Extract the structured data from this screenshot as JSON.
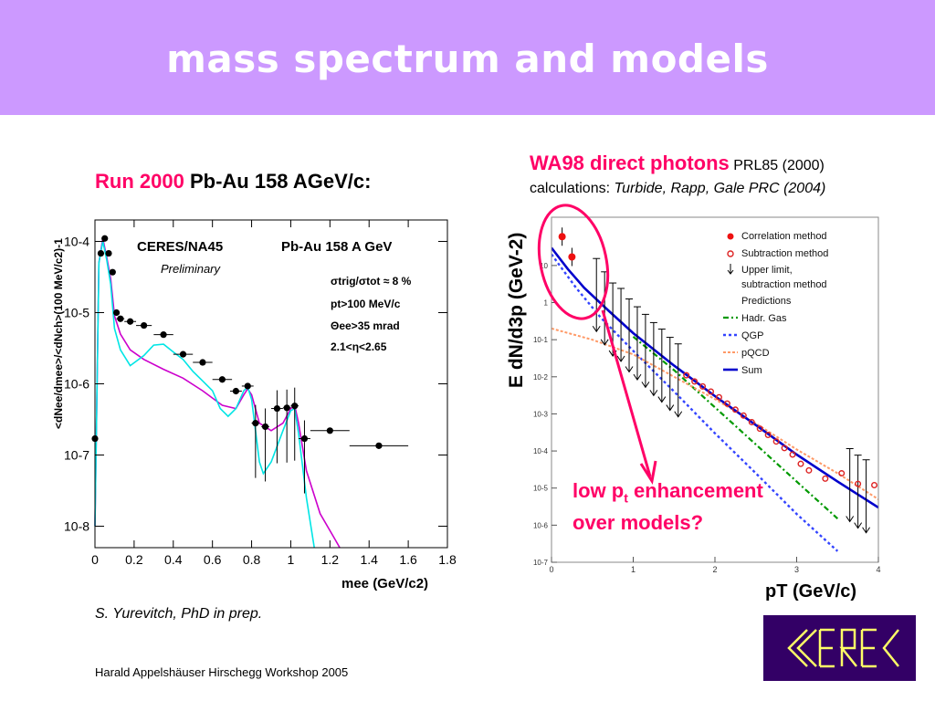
{
  "slide": {
    "title": "mass spectrum and models",
    "left_header": {
      "run": "Run 2000",
      "system": "Pb-Au 158 AGeV/c:"
    },
    "right_header": {
      "title": "WA98 direct photons",
      "ref": "PRL85 (2000)",
      "calc_prefix": "calculations:",
      "calc_ref": "Turbide, Rapp, Gale PRC (2004)"
    },
    "credit": "S. Yurevitch, PhD in prep.",
    "footer": "Harald Appelshäuser  Hirschegg Workshop 2005",
    "callout": {
      "line1_pre": "low p",
      "line1_sub": "t",
      "line1_post": " enhancement",
      "line2": "over models?"
    },
    "logo_text": "CERES",
    "logo_color": "#330066",
    "accent_color": "#ff0066"
  },
  "chart_data": [
    {
      "type": "scatter",
      "labels": {
        "experiment": "CERES/NA45",
        "system": "Pb-Au 158 A GeV",
        "status": "Preliminary",
        "cut1": "σtrig/σtot ≈ 8 %",
        "cut2": "pt>100 MeV/c",
        "cut3": "Θee>35 mrad",
        "cut4": "2.1<η<2.65"
      },
      "xlabel": "mee (GeV/c2)",
      "ylabel": "<dNee/dmee>/<dNch>(100 MeV/c2)-1",
      "x_ticks": [
        "0",
        "0.2",
        "0.4",
        "0.6",
        "0.8",
        "1",
        "1.2",
        "1.4",
        "1.6",
        "1.8"
      ],
      "y_ticks": [
        "10-4",
        "10-5",
        "10-6",
        "10-7",
        "10-8"
      ],
      "xlim": [
        0,
        1.8
      ],
      "ylim": [
        5e-09,
        0.0002
      ],
      "yscale": "log",
      "points": [
        {
          "x": 0.0,
          "y": 1.7e-07,
          "xerr": 0.0
        },
        {
          "x": 0.03,
          "y": 6.8e-05,
          "xerr": 0.01
        },
        {
          "x": 0.05,
          "y": 0.00011,
          "xerr": 0.01
        },
        {
          "x": 0.07,
          "y": 6.8e-05,
          "xerr": 0.01
        },
        {
          "x": 0.09,
          "y": 3.7e-05,
          "xerr": 0.01
        },
        {
          "x": 0.11,
          "y": 1e-05,
          "xerr": 0.01
        },
        {
          "x": 0.13,
          "y": 8.2e-06,
          "xerr": 0.02
        },
        {
          "x": 0.18,
          "y": 7.5e-06,
          "xerr": 0.03
        },
        {
          "x": 0.25,
          "y": 6.6e-06,
          "xerr": 0.04
        },
        {
          "x": 0.35,
          "y": 4.9e-06,
          "xerr": 0.05
        },
        {
          "x": 0.45,
          "y": 2.6e-06,
          "xerr": 0.05
        },
        {
          "x": 0.55,
          "y": 2e-06,
          "xerr": 0.05
        },
        {
          "x": 0.65,
          "y": 1.15e-06,
          "xerr": 0.05
        },
        {
          "x": 0.72,
          "y": 7.9e-07,
          "xerr": 0.03
        },
        {
          "x": 0.78,
          "y": 9.3e-07,
          "xerr": 0.03
        },
        {
          "x": 0.82,
          "y": 2.8e-07,
          "xerr": 0.02
        },
        {
          "x": 0.87,
          "y": 2.5e-07,
          "xerr": 0.02
        },
        {
          "x": 0.93,
          "y": 4.5e-07,
          "xerr": 0.03
        },
        {
          "x": 0.98,
          "y": 4.6e-07,
          "xerr": 0.02
        },
        {
          "x": 1.02,
          "y": 4.9e-07,
          "xerr": 0.02
        },
        {
          "x": 1.07,
          "y": 1.7e-07,
          "xerr": 0.03
        },
        {
          "x": 1.2,
          "y": 2.2e-07,
          "xerr": 0.1
        },
        {
          "x": 1.45,
          "y": 1.35e-07,
          "xerr": 0.15
        }
      ],
      "series": [
        {
          "color": "#cc00cc",
          "x": [
            0.0,
            0.02,
            0.04,
            0.06,
            0.08,
            0.1,
            0.13,
            0.18,
            0.25,
            0.35,
            0.45,
            0.55,
            0.65,
            0.72,
            0.76,
            0.78,
            0.8,
            0.84,
            0.9,
            0.96,
            1.0,
            1.02,
            1.04,
            1.08,
            1.15,
            1.22,
            1.25
          ],
          "y": [
            1e-08,
            5e-05,
            0.00011,
            6e-05,
            3e-05,
            9e-06,
            5e-06,
            3e-06,
            2.2e-06,
            1.6e-06,
            1.2e-06,
            8e-07,
            5e-07,
            4.5e-07,
            7e-07,
            8.5e-07,
            7e-07,
            2.8e-07,
            2.2e-07,
            2.8e-07,
            4.5e-07,
            5e-07,
            2.8e-07,
            6e-08,
            1.5e-08,
            7e-09,
            5e-09
          ]
        },
        {
          "color": "#00e5e5",
          "x": [
            0.0,
            0.02,
            0.04,
            0.06,
            0.08,
            0.1,
            0.13,
            0.18,
            0.25,
            0.3,
            0.35,
            0.4,
            0.45,
            0.5,
            0.55,
            0.6,
            0.64,
            0.68,
            0.72,
            0.76,
            0.78,
            0.8,
            0.84,
            0.86,
            0.9,
            0.96,
            1.0,
            1.02,
            1.04,
            1.08,
            1.12
          ],
          "y": [
            1e-08,
            5e-05,
            0.0001,
            5.5e-05,
            2.5e-05,
            6e-06,
            3e-06,
            1.8e-06,
            2.5e-06,
            3.5e-06,
            3.6e-06,
            2.8e-06,
            2.2e-06,
            1.5e-06,
            1.1e-06,
            8e-07,
            4.5e-07,
            3.5e-07,
            4.5e-07,
            8e-07,
            9e-07,
            6e-07,
            8e-08,
            5.5e-08,
            8e-08,
            2.2e-07,
            4.2e-07,
            4.5e-07,
            2e-07,
            2.5e-08,
            5e-09
          ]
        }
      ]
    },
    {
      "type": "scatter",
      "ylabel": "E dN/d3p (GeV-2)",
      "xlabel": "pT  (GeV/c)",
      "x_ticks": [
        "0",
        "1",
        "2",
        "3",
        "4"
      ],
      "y_ticks": [
        "10",
        "1",
        "10-1",
        "10-2",
        "10-3",
        "10-4",
        "10-5",
        "10-6",
        "10-7"
      ],
      "xlim": [
        0,
        4
      ],
      "ylim": [
        1e-07,
        200
      ],
      "yscale": "log",
      "legend": [
        "Correlation method",
        "Subtraction method",
        "Upper limit,",
        "subtraction method",
        "Predictions",
        "Hadr. Gas",
        "QGP",
        "pQCD",
        "Sum"
      ],
      "correlation": [
        {
          "x": 0.13,
          "y": 60
        },
        {
          "x": 0.25,
          "y": 17
        }
      ],
      "subtraction": [
        {
          "x": 1.65,
          "y": 0.011
        },
        {
          "x": 1.75,
          "y": 0.0075
        },
        {
          "x": 1.85,
          "y": 0.0055
        },
        {
          "x": 1.95,
          "y": 0.004
        },
        {
          "x": 2.05,
          "y": 0.0028
        },
        {
          "x": 2.15,
          "y": 0.0019
        },
        {
          "x": 2.25,
          "y": 0.0013
        },
        {
          "x": 2.35,
          "y": 0.0009
        },
        {
          "x": 2.45,
          "y": 0.0006
        },
        {
          "x": 2.55,
          "y": 0.0004
        },
        {
          "x": 2.65,
          "y": 0.00027
        },
        {
          "x": 2.75,
          "y": 0.00018
        },
        {
          "x": 2.85,
          "y": 0.00012
        },
        {
          "x": 2.95,
          "y": 8e-05
        },
        {
          "x": 3.05,
          "y": 4.5e-05
        },
        {
          "x": 3.15,
          "y": 3e-05
        },
        {
          "x": 3.35,
          "y": 1.8e-05
        },
        {
          "x": 3.55,
          "y": 2.5e-05
        },
        {
          "x": 3.75,
          "y": 1.3e-05
        },
        {
          "x": 3.95,
          "y": 1.2e-05
        }
      ],
      "upper_limits": [
        {
          "x": 0.55,
          "y": 1.6
        },
        {
          "x": 0.65,
          "y": 0.7
        },
        {
          "x": 0.75,
          "y": 0.35
        },
        {
          "x": 0.85,
          "y": 0.25
        },
        {
          "x": 0.95,
          "y": 0.13
        },
        {
          "x": 1.05,
          "y": 0.08
        },
        {
          "x": 1.15,
          "y": 0.05
        },
        {
          "x": 1.25,
          "y": 0.03
        },
        {
          "x": 1.35,
          "y": 0.02
        },
        {
          "x": 1.45,
          "y": 0.012
        },
        {
          "x": 1.55,
          "y": 0.008
        },
        {
          "x": 3.65,
          "y": 1.2e-05
        },
        {
          "x": 3.75,
          "y": 8e-06
        },
        {
          "x": 3.85,
          "y": 6e-06
        }
      ],
      "series": [
        {
          "name": "Hadr. Gas",
          "color": "#009900",
          "x": [
            1.0,
            1.5,
            2.0,
            2.5,
            3.0,
            3.5
          ],
          "y": [
            0.12,
            0.015,
            0.0015,
            0.00015,
            1.5e-05,
            1.5e-06
          ]
        },
        {
          "name": "QGP",
          "color": "#3344ff",
          "x": [
            0.0,
            0.3,
            0.6,
            1.0,
            1.5,
            2.0,
            2.5,
            3.0,
            3.5
          ],
          "y": [
            20,
            2.5,
            0.4,
            0.05,
            0.004,
            0.0003,
            2.5e-05,
            2e-06,
            2e-07
          ]
        },
        {
          "name": "pQCD",
          "color": "#ff9966",
          "x": [
            0.0,
            0.5,
            1.0,
            1.5,
            2.0,
            2.5,
            3.0,
            3.5,
            4.0
          ],
          "y": [
            0.2,
            0.1,
            0.04,
            0.01,
            0.0025,
            0.00055,
            0.00011,
            2.5e-05,
            5e-06
          ]
        },
        {
          "name": "Sum",
          "color": "#0000cc",
          "x": [
            0.0,
            0.2,
            0.4,
            0.7,
            1.0,
            1.5,
            2.0,
            2.5,
            3.0,
            3.5,
            4.0
          ],
          "y": [
            30,
            8,
            2.5,
            0.6,
            0.15,
            0.02,
            0.003,
            0.0005,
            8e-05,
            1.5e-05,
            3e-06
          ]
        }
      ]
    }
  ]
}
